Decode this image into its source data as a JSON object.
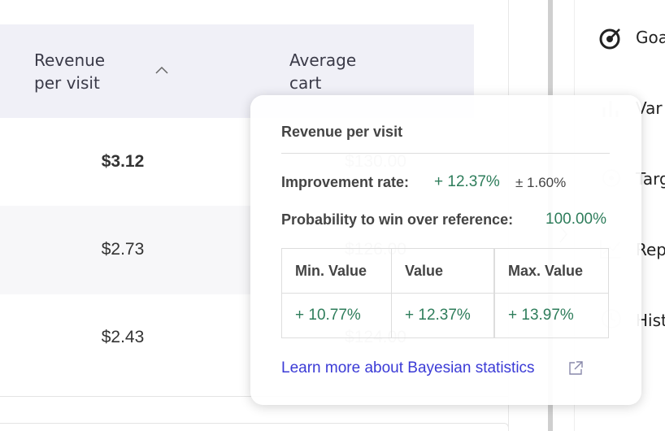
{
  "table": {
    "headers": [
      "Revenue per visit",
      "Average cart"
    ],
    "rows": [
      [
        "$3.12",
        "$130.00"
      ],
      [
        "$2.73",
        "$126.00"
      ],
      [
        "$2.43",
        "$124.00"
      ]
    ]
  },
  "sidebar": {
    "items": [
      "Goa",
      "Var",
      "Targ",
      "Rep",
      "Hist"
    ]
  },
  "tooltip": {
    "title": "Revenue per visit",
    "improvement_label": "Improvement rate:",
    "improvement_value": "+ 12.37%",
    "improvement_margin": "± 1.60%",
    "probability_label": "Probability to win over reference:",
    "probability_value": "100.00%",
    "table": {
      "headers": [
        "Min. Value",
        "Value",
        "Max. Value"
      ],
      "values": [
        "+ 10.77%",
        "+ 12.37%",
        "+ 13.97%"
      ]
    },
    "link": "Learn more about Bayesian statistics"
  }
}
